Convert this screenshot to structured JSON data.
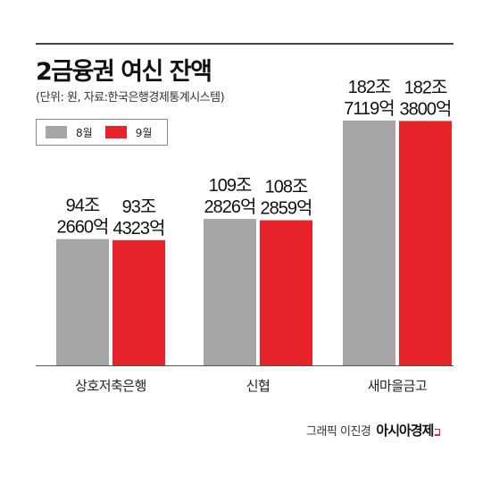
{
  "chart_data": {
    "type": "bar",
    "title": "2금융권 여신 잔액",
    "subtitle": "(단위: 원, 자료:한국은행경제통계시스템)",
    "categories": [
      "상호저축은행",
      "신협",
      "새마을금고"
    ],
    "series": [
      {
        "name": "8월",
        "color": "#a6a6a6",
        "values": [
          94.266,
          109.2826,
          182.7119
        ],
        "labels": [
          [
            "94조",
            "2660억"
          ],
          [
            "109조",
            "2826억"
          ],
          [
            "182조",
            "7119억"
          ]
        ]
      },
      {
        "name": "9월",
        "color": "#e8242b",
        "values": [
          93.4323,
          108.2859,
          182.38
        ],
        "labels": [
          [
            "93조",
            "4323억"
          ],
          [
            "108조",
            "2859억"
          ],
          [
            "182조",
            "3800억"
          ]
        ]
      }
    ],
    "unit": "조원",
    "legend_position": "top-left",
    "grid": false
  },
  "footer": {
    "credit": "그래픽 이진경",
    "brand": "아시아경제"
  }
}
